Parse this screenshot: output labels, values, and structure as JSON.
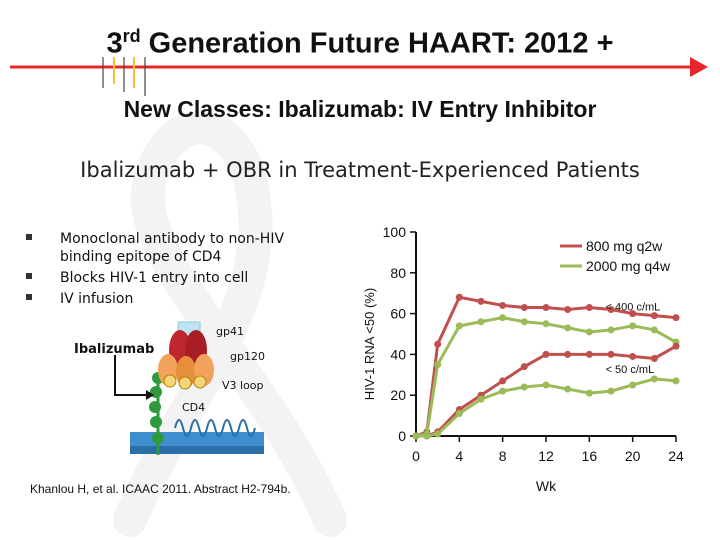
{
  "slide": {
    "title_main": "3",
    "title_sup": "rd",
    "title_rest": " Generation Future HAART: 2012 +",
    "subtitle": "New Classes: Ibalizumab: IV Entry Inhibitor",
    "heading": "Ibalizumab + OBR in Treatment-Experienced Patients",
    "bullets": [
      "Monoclonal antibody to non-HIV binding epitope of CD4",
      "Blocks HIV-1 entry into cell",
      "IV infusion"
    ],
    "citation": "Khanlou H, et al. ICAAC 2011. Abstract H2-794b.",
    "accent_arrow_color": "#e8262a"
  },
  "diagram": {
    "labels": {
      "gp41": "gp41",
      "ibalizumab": "Ibalizumab",
      "gp120": "gp120",
      "v3loop": "V3 loop",
      "cd4": "CD4"
    },
    "colors": {
      "ibalizumab": "#c0262d",
      "gp120": "#f2a25a",
      "v3": "#f6d57a",
      "cd4": "#2e9a3c",
      "membrane": "#3f8fd0"
    }
  },
  "chart_data": {
    "type": "line",
    "xlabel": "Wk",
    "ylabel": "HIV-1 RNA <50 (%)",
    "x_ticks": [
      0,
      4,
      8,
      12,
      16,
      20,
      24
    ],
    "y_ticks": [
      0,
      20,
      40,
      60,
      80,
      100
    ],
    "xlim": [
      0,
      24
    ],
    "ylim": [
      0,
      100
    ],
    "legend_position": "top-right",
    "annotations": [
      "< 400 c/mL",
      "< 50 c/mL"
    ],
    "x": [
      0,
      1,
      2,
      4,
      6,
      8,
      10,
      12,
      14,
      16,
      18,
      20,
      22,
      24
    ],
    "series": [
      {
        "name": "800 mg q2w",
        "threshold": "< 400 c/mL",
        "color": "#c0504d",
        "values": [
          0,
          2,
          45,
          68,
          66,
          64,
          63,
          63,
          62,
          63,
          62,
          60,
          59,
          58
        ]
      },
      {
        "name": "2000 mg q4w",
        "threshold": "< 400 c/mL",
        "color": "#9bbb59",
        "values": [
          0,
          1,
          35,
          54,
          56,
          58,
          56,
          55,
          53,
          51,
          52,
          54,
          52,
          46
        ]
      },
      {
        "name": "800 mg q2w",
        "threshold": "< 50 c/mL",
        "color": "#c0504d",
        "values": [
          0,
          0,
          2,
          13,
          20,
          27,
          34,
          40,
          40,
          40,
          40,
          39,
          38,
          44
        ]
      },
      {
        "name": "2000 mg q4w",
        "threshold": "< 50 c/mL",
        "color": "#9bbb59",
        "values": [
          0,
          0,
          1,
          11,
          18,
          22,
          24,
          25,
          23,
          21,
          22,
          25,
          28,
          27
        ]
      }
    ]
  }
}
